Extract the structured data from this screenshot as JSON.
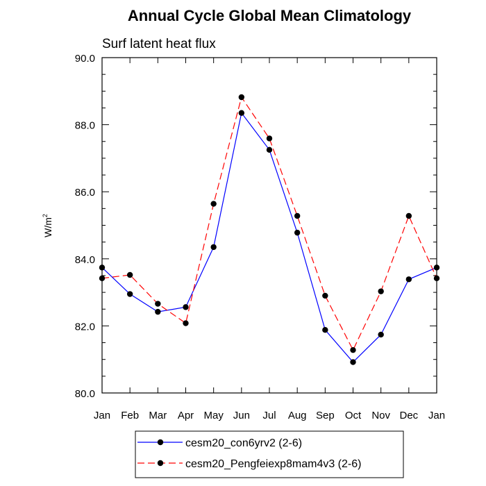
{
  "chart_data": {
    "type": "line",
    "title": "Annual Cycle Global Mean Climatology",
    "subtitle": "Surf latent heat flux",
    "ylabel_base": "W/m",
    "ylabel_sup": "2",
    "xlabel": "",
    "categories": [
      "Jan",
      "Feb",
      "Mar",
      "Apr",
      "May",
      "Jun",
      "Jul",
      "Aug",
      "Sep",
      "Oct",
      "Nov",
      "Dec",
      "Jan"
    ],
    "ylim": [
      80.0,
      90.0
    ],
    "ytick_labels": [
      "80.0",
      "82.0",
      "84.0",
      "86.0",
      "88.0",
      "90.0"
    ],
    "grid": false,
    "legend_position": "bottom",
    "series": [
      {
        "name": "cesm20_con6yrv2 (2-6)",
        "color": "#0000ff",
        "dash": "solid",
        "marker": "filled-circle",
        "values": [
          83.74,
          82.95,
          82.42,
          82.56,
          84.35,
          88.35,
          87.25,
          84.78,
          81.88,
          80.92,
          81.74,
          83.39,
          83.74
        ]
      },
      {
        "name": "cesm20_Pengfeiexp8mam4v3 (2-6)",
        "color": "#ff0000",
        "dash": "dashed",
        "marker": "filled-circle",
        "values": [
          83.42,
          83.52,
          82.66,
          82.08,
          85.64,
          88.82,
          87.59,
          85.28,
          82.9,
          81.28,
          83.03,
          85.28,
          83.42
        ]
      }
    ]
  }
}
